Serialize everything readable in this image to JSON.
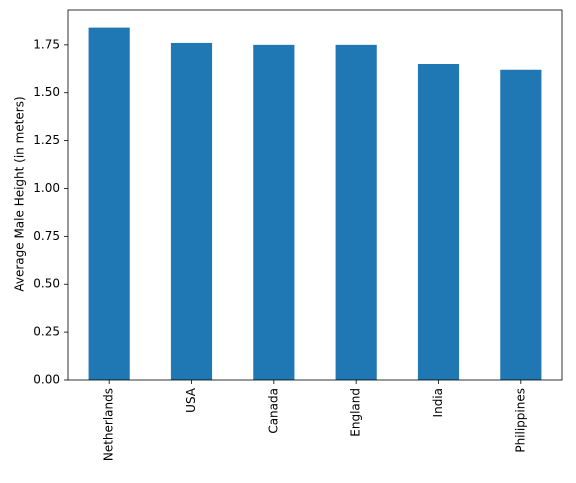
{
  "chart_data": {
    "type": "bar",
    "ylabel": "Average Male Height (in meters)",
    "categories": [
      "Netherlands",
      "USA",
      "Canada",
      "England",
      "India",
      "Philippines"
    ],
    "values": [
      1.84,
      1.76,
      1.75,
      1.75,
      1.65,
      1.62
    ],
    "color": "#1f77b4",
    "ylim": [
      0,
      1.932
    ],
    "yticks": [
      {
        "value": 0,
        "label": "0.00"
      },
      {
        "value": 0.25,
        "label": "0.25"
      },
      {
        "value": 0.5,
        "label": "0.50"
      },
      {
        "value": 0.75,
        "label": "0.75"
      },
      {
        "value": 1,
        "label": "1.00"
      },
      {
        "value": 1.25,
        "label": "1.25"
      },
      {
        "value": 1.5,
        "label": "1.50"
      },
      {
        "value": 1.75,
        "label": "1.75"
      }
    ],
    "grid": false
  }
}
